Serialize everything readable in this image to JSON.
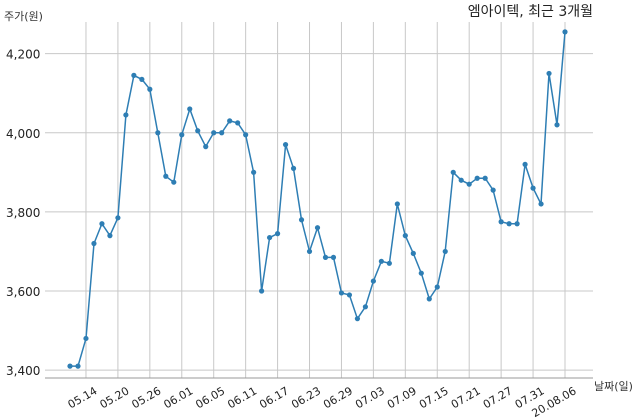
{
  "chart_data": {
    "type": "line",
    "title": "엠아이텍, 최근 3개월",
    "ylabel": "주가(원)",
    "xlabel": "날짜(일)",
    "ylim": [
      3380,
      4280
    ],
    "yticks": [
      3400,
      3600,
      3800,
      4000,
      4200
    ],
    "ytick_labels": [
      "3,400",
      "3,600",
      "3,800",
      "4,000",
      "4,200"
    ],
    "xtick_labels": [
      "05.14",
      "05.20",
      "05.26",
      "06.01",
      "06.05",
      "06.11",
      "06.17",
      "06.23",
      "06.29",
      "07.03",
      "07.09",
      "07.15",
      "07.21",
      "07.27",
      "07.31",
      "20.08.06"
    ],
    "xtick_indices": [
      2,
      6,
      10,
      14,
      18,
      22,
      26,
      30,
      34,
      38,
      42,
      46,
      50,
      54,
      58,
      62
    ],
    "grid": true,
    "series": [
      {
        "color": "#2e7eb4",
        "values": [
          3410,
          3410,
          3480,
          3720,
          3770,
          3740,
          3785,
          4045,
          4145,
          4135,
          4110,
          4000,
          3890,
          3875,
          3995,
          4060,
          4005,
          3965,
          4000,
          4000,
          4030,
          4025,
          3995,
          3900,
          3600,
          3735,
          3745,
          3970,
          3910,
          3780,
          3700,
          3760,
          3685,
          3685,
          3595,
          3590,
          3530,
          3560,
          3625,
          3675,
          3670,
          3820,
          3740,
          3695,
          3645,
          3580,
          3610,
          3700,
          3900,
          3880,
          3870,
          3885,
          3885,
          3855,
          3775,
          3770,
          3770,
          3920,
          3860,
          3820,
          4150,
          4020,
          4255
        ]
      }
    ]
  }
}
